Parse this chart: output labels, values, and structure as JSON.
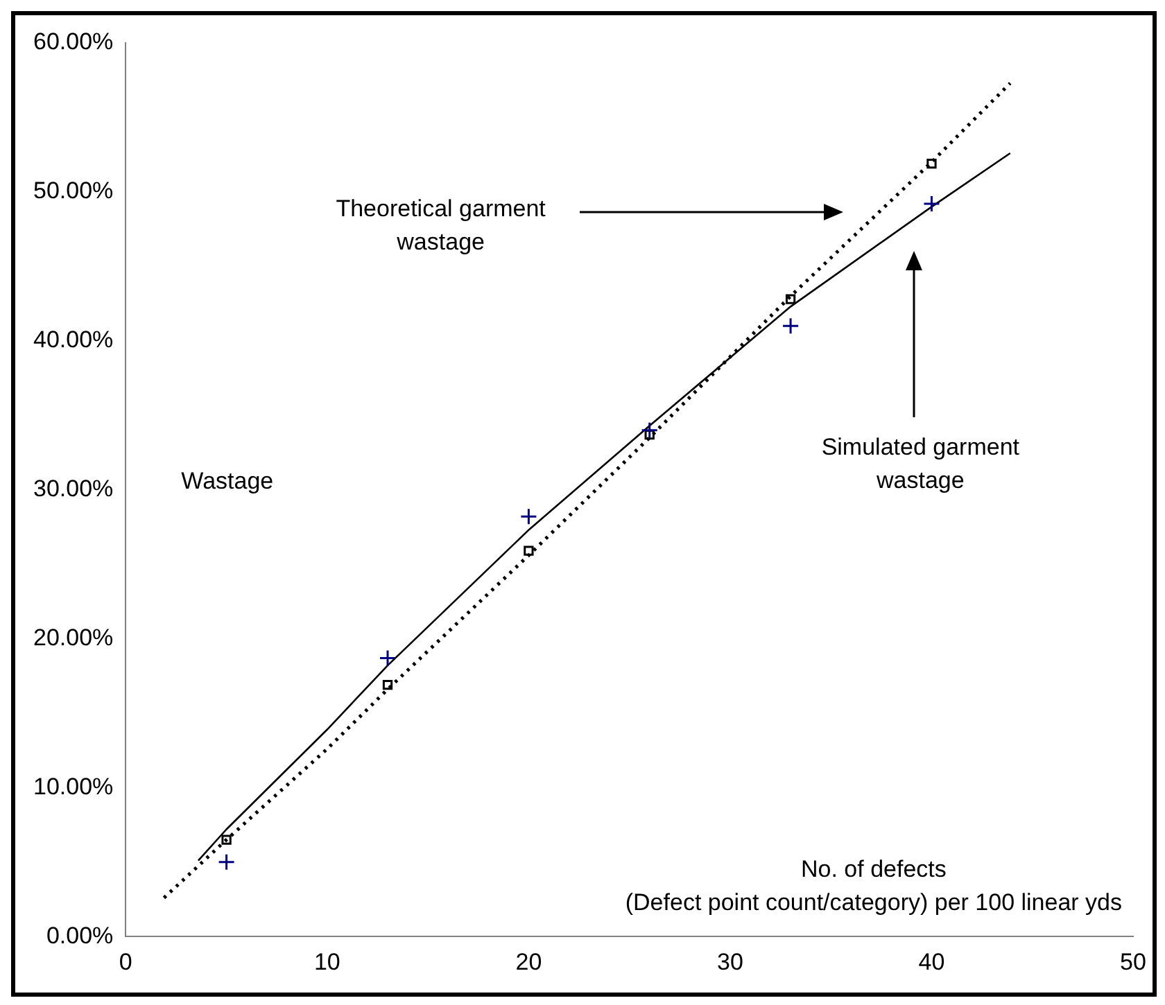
{
  "chart_data": {
    "type": "scatter",
    "xlabel": "No. of defects\n(Defect point count/category) per 100 linear yds",
    "ylabel": "Wastage",
    "xlim": [
      0,
      50
    ],
    "xticks": [
      0,
      10,
      20,
      30,
      40,
      50
    ],
    "ylim": [
      0,
      60
    ],
    "yticks": [
      {
        "value": 0,
        "label": "0.00%"
      },
      {
        "value": 10,
        "label": "10.00%"
      },
      {
        "value": 20,
        "label": "20.00%"
      },
      {
        "value": 30,
        "label": "30.00%"
      },
      {
        "value": 40,
        "label": "40.00%"
      },
      {
        "value": 50,
        "label": "50.00%"
      },
      {
        "value": 60,
        "label": "60.00%"
      }
    ],
    "grid": false,
    "legend": false,
    "series": [
      {
        "type": "line",
        "color": "#000000",
        "line_style": "dotted",
        "marker": "none",
        "x": [
          1.9,
          5,
          10,
          13,
          20,
          26,
          33,
          40,
          43.9
        ],
        "values": [
          2.6,
          6.5,
          12.6,
          16.6,
          25.6,
          33.5,
          43,
          52,
          57.3
        ]
      },
      {
        "type": "line",
        "color": "#000000",
        "line_style": "solid",
        "marker": "none",
        "x": [
          3.6,
          5,
          10,
          13,
          20,
          26,
          33,
          40,
          43.9
        ],
        "values": [
          5.1,
          7.2,
          13.9,
          18.2,
          27.3,
          34.3,
          42.3,
          49,
          52.6
        ]
      },
      {
        "type": "scatter",
        "color": "#000000",
        "marker": "square",
        "x": [
          5,
          13,
          20,
          26,
          33,
          40
        ],
        "values": [
          6.5,
          16.9,
          25.9,
          33.7,
          42.8,
          51.9
        ]
      },
      {
        "type": "scatter",
        "color": "#000080",
        "marker": "cross",
        "x": [
          5,
          13,
          20,
          26,
          33,
          40
        ],
        "values": [
          5,
          18.7,
          28.2,
          34,
          41,
          49.2
        ]
      }
    ],
    "annotations": [
      "Theoretical garment\nwastage",
      "Simulated garment\nwastage"
    ]
  }
}
